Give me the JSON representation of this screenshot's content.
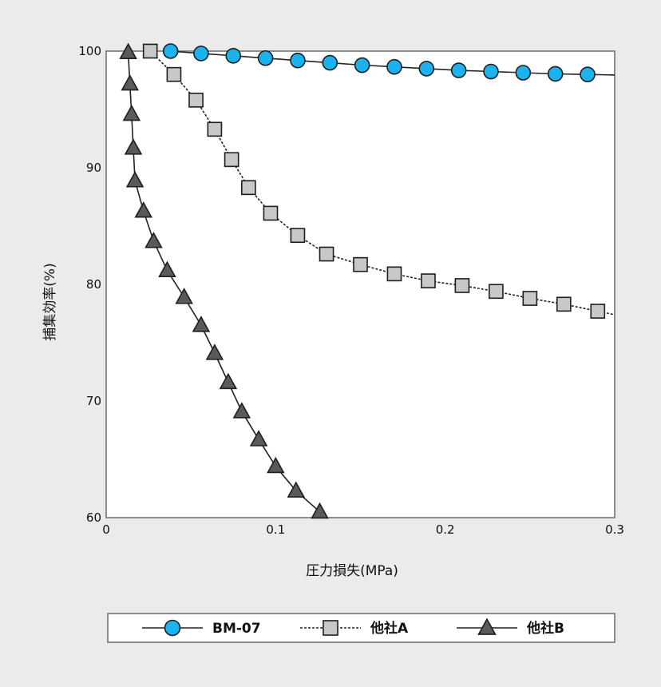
{
  "chart_data": {
    "type": "line",
    "xlabel": "圧力損失(MPa)",
    "ylabel": "捕集効率(%)",
    "xlim": [
      0,
      0.3
    ],
    "ylim": [
      60,
      100
    ],
    "x_ticks": [
      "0",
      "0.1",
      "0.2",
      "0.3"
    ],
    "y_ticks": [
      "60",
      "70",
      "80",
      "90",
      "100"
    ],
    "legend_position": "bottom",
    "grid": false,
    "series": [
      {
        "name": "BM-07",
        "marker": "circle",
        "line_style": "solid",
        "color": "#1ab3ee",
        "x": [
          0.038,
          0.056,
          0.075,
          0.094,
          0.113,
          0.132,
          0.151,
          0.17,
          0.189,
          0.208,
          0.227,
          0.246,
          0.265,
          0.284,
          0.3
        ],
        "y": [
          100.0,
          99.8,
          99.6,
          99.4,
          99.2,
          99.0,
          98.8,
          98.65,
          98.5,
          98.35,
          98.25,
          98.15,
          98.05,
          98.0,
          97.95
        ]
      },
      {
        "name": "他社A",
        "marker": "square",
        "line_style": "dotted",
        "color": "#c8c8c8",
        "x": [
          0.026,
          0.04,
          0.053,
          0.064,
          0.074,
          0.084,
          0.097,
          0.113,
          0.13,
          0.15,
          0.17,
          0.19,
          0.21,
          0.23,
          0.25,
          0.27,
          0.29,
          0.3
        ],
        "y": [
          100.0,
          98.0,
          95.8,
          93.3,
          90.7,
          88.3,
          86.1,
          84.2,
          82.6,
          81.7,
          80.9,
          80.3,
          79.9,
          79.4,
          78.8,
          78.3,
          77.7,
          77.4
        ]
      },
      {
        "name": "他社B",
        "marker": "triangle",
        "line_style": "solid",
        "color": "#5a5a5a",
        "x": [
          0.013,
          0.014,
          0.015,
          0.016,
          0.017,
          0.022,
          0.028,
          0.036,
          0.046,
          0.056,
          0.064,
          0.072,
          0.08,
          0.09,
          0.1,
          0.112,
          0.126
        ],
        "y": [
          99.9,
          97.2,
          94.6,
          91.7,
          88.9,
          86.3,
          83.7,
          81.2,
          78.9,
          76.5,
          74.1,
          71.6,
          69.1,
          66.7,
          64.4,
          62.3,
          60.5
        ]
      }
    ]
  }
}
